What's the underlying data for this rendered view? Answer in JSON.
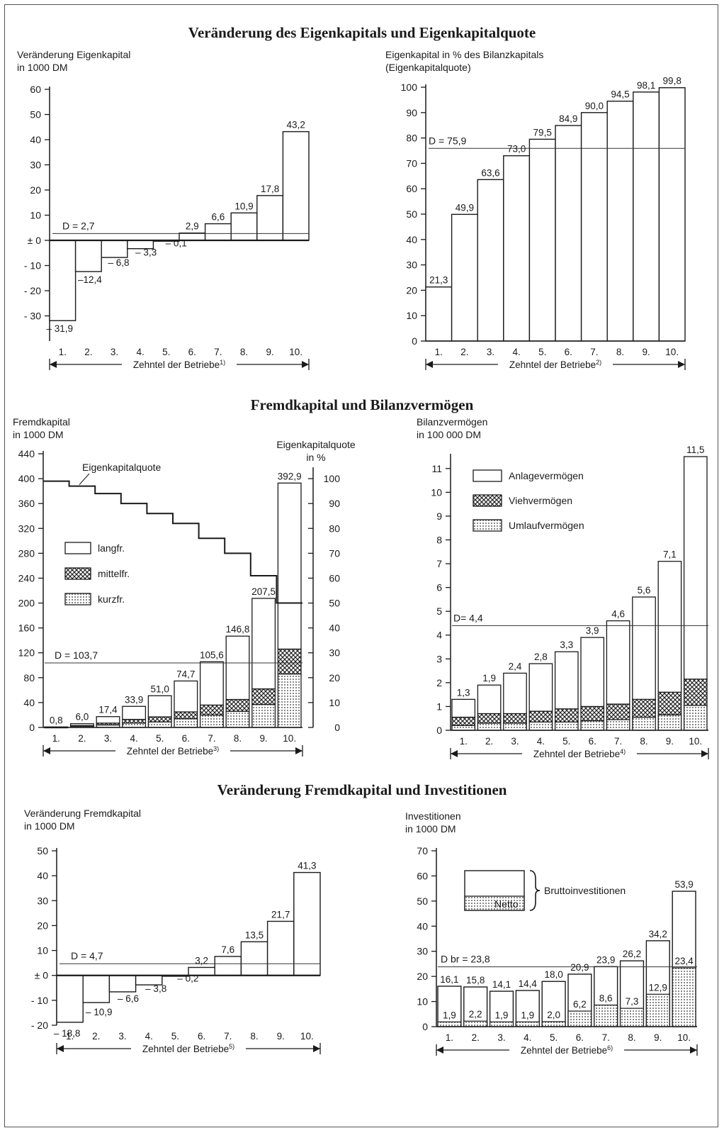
{
  "sections": [
    {
      "title": "Veränderung des Eigenkapitals und Eigenkapitalquote"
    },
    {
      "title": "Fremdkapital und Bilanzvermögen"
    },
    {
      "title": "Veränderung Fremdkapital und Investitionen"
    }
  ],
  "decile_labels": [
    "1.",
    "2.",
    "3.",
    "4.",
    "5.",
    "6.",
    "7.",
    "8.",
    "9.",
    "10."
  ],
  "chart_data": [
    {
      "id": "c1",
      "type": "bar",
      "ylabel_lines": [
        "Veränderung Eigenkapital",
        "in 1000 DM"
      ],
      "xlabel": "Zehntel der Betriebe",
      "footnote": "1)",
      "ylim": [
        -40,
        60
      ],
      "yticks": [
        {
          "v": 60,
          "t": "60"
        },
        {
          "v": 50,
          "t": "50"
        },
        {
          "v": 40,
          "t": "40"
        },
        {
          "v": 30,
          "t": "30"
        },
        {
          "v": 20,
          "t": "20"
        },
        {
          "v": 10,
          "t": "10"
        },
        {
          "v": 0,
          "t": "± 0"
        },
        {
          "v": -10,
          "t": "- 10"
        },
        {
          "v": -20,
          "t": "- 20"
        },
        {
          "v": -30,
          "t": "- 30"
        }
      ],
      "values": [
        -31.9,
        -12.4,
        -6.8,
        -3.3,
        -0.1,
        2.9,
        6.6,
        10.9,
        17.8,
        43.2
      ],
      "value_labels": [
        "– 31,9",
        "–12,4",
        "– 6,8",
        "– 3,3",
        "– 0,1",
        "2,9",
        "6,6",
        "10,9",
        "17,8",
        "43,2"
      ],
      "mean": {
        "value": 2.7,
        "label": "D = 2,7"
      }
    },
    {
      "id": "c2",
      "type": "bar",
      "ylabel_lines": [
        "Eigenkapital in % des Bilanzkapitals",
        "(Eigenkapitalquote)"
      ],
      "xlabel": "Zehntel der Betriebe",
      "footnote": "2)",
      "ylim": [
        0,
        100
      ],
      "yticks": [
        {
          "v": 100,
          "t": "100"
        },
        {
          "v": 90,
          "t": "90"
        },
        {
          "v": 80,
          "t": "80"
        },
        {
          "v": 70,
          "t": "70"
        },
        {
          "v": 60,
          "t": "60"
        },
        {
          "v": 50,
          "t": "50"
        },
        {
          "v": 40,
          "t": "40"
        },
        {
          "v": 30,
          "t": "30"
        },
        {
          "v": 20,
          "t": "20"
        },
        {
          "v": 10,
          "t": "10"
        },
        {
          "v": 0,
          "t": "0"
        }
      ],
      "values": [
        21.3,
        49.9,
        63.6,
        73.0,
        79.5,
        84.9,
        90.0,
        94.5,
        98.1,
        99.8
      ],
      "value_labels": [
        "21,3",
        "49,9",
        "63,6",
        "73,0",
        "79,5",
        "84,9",
        "90,0",
        "94,5",
        "98,1",
        "99,8"
      ],
      "mean": {
        "value": 75.9,
        "label": "D = 75,9"
      }
    },
    {
      "id": "c3",
      "type": "bar",
      "ylabel_lines": [
        "Fremdkapital",
        "in 1000 DM"
      ],
      "right_axis_label_lines": [
        "Eigenkapitalquote",
        "in %"
      ],
      "xlabel": "Zehntel der Betriebe",
      "footnote": "3)",
      "ylim": [
        0,
        440
      ],
      "y2lim": [
        0,
        110
      ],
      "yticks": [
        440,
        400,
        360,
        320,
        280,
        240,
        200,
        160,
        120,
        80,
        40,
        0
      ],
      "y2ticks": [
        100,
        90,
        80,
        70,
        60,
        50,
        40,
        30,
        20,
        10,
        0
      ],
      "totals": [
        0.8,
        6.0,
        17.4,
        33.9,
        51.0,
        74.7,
        105.6,
        146.8,
        207.5,
        392.9
      ],
      "value_labels": [
        "0,8",
        "6,0",
        "17,4",
        "33,9",
        "51,0",
        "74,7",
        "105,6",
        "146,8",
        "207,5",
        "392,9"
      ],
      "series": [
        {
          "name": "kurzfr.",
          "pattern": "dots",
          "values": [
            0.3,
            2,
            4,
            7,
            9,
            14,
            20,
            26,
            37,
            86
          ]
        },
        {
          "name": "mittelfr.",
          "pattern": "cross",
          "values": [
            0.2,
            1,
            3,
            6,
            8,
            11,
            16,
            19,
            25,
            40
          ]
        },
        {
          "name": "langfr.",
          "pattern": "plain",
          "values": [
            0.3,
            3,
            10.4,
            20.9,
            34,
            49.7,
            69.6,
            101.8,
            145.5,
            266.9
          ]
        }
      ],
      "line": {
        "name": "Eigenkapitalquote",
        "values": [
          99,
          97,
          94,
          90,
          86,
          82,
          76,
          70,
          61,
          50
        ]
      },
      "mean": {
        "value": 103.7,
        "label": "D = 103,7"
      }
    },
    {
      "id": "c4",
      "type": "bar",
      "ylabel_lines": [
        "Bilanzvermögen",
        "in 100 000 DM"
      ],
      "xlabel": "Zehntel der Betriebe",
      "footnote": "4)",
      "ylim": [
        0,
        11.5
      ],
      "yticks": [
        11,
        10,
        9,
        8,
        7,
        6,
        5,
        4,
        3,
        2,
        1,
        0
      ],
      "totals": [
        1.3,
        1.9,
        2.4,
        2.8,
        3.3,
        3.9,
        4.6,
        5.6,
        7.1,
        11.5
      ],
      "value_labels": [
        "1,3",
        "1,9",
        "2,4",
        "2,8",
        "3,3",
        "3,9",
        "4,6",
        "5,6",
        "7,1",
        "11,5"
      ],
      "series": [
        {
          "name": "Umlaufvermögen",
          "pattern": "dots",
          "values": [
            0.2,
            0.3,
            0.3,
            0.35,
            0.35,
            0.4,
            0.45,
            0.55,
            0.65,
            1.05
          ]
        },
        {
          "name": "Viehvermögen",
          "pattern": "cross",
          "values": [
            0.35,
            0.4,
            0.4,
            0.45,
            0.55,
            0.6,
            0.65,
            0.75,
            0.95,
            1.1
          ]
        },
        {
          "name": "Anlagevermögen",
          "pattern": "plain",
          "values": [
            0.75,
            1.2,
            1.7,
            2.0,
            2.4,
            2.9,
            3.5,
            4.3,
            5.5,
            9.35
          ]
        }
      ],
      "mean": {
        "value": 4.4,
        "label": "D= 4,4"
      }
    },
    {
      "id": "c5",
      "type": "bar",
      "ylabel_lines": [
        "Veränderung Fremdkapital",
        "in 1000 DM"
      ],
      "xlabel": "Zehntel der Betriebe",
      "footnote": "5)",
      "ylim": [
        -20,
        50
      ],
      "yticks": [
        {
          "v": 50,
          "t": "50"
        },
        {
          "v": 40,
          "t": "40"
        },
        {
          "v": 30,
          "t": "30"
        },
        {
          "v": 20,
          "t": "20"
        },
        {
          "v": 10,
          "t": "10"
        },
        {
          "v": 0,
          "t": "± 0"
        },
        {
          "v": -10,
          "t": "- 10"
        },
        {
          "v": -20,
          "t": "- 20"
        }
      ],
      "values": [
        -18.8,
        -10.9,
        -6.6,
        -3.8,
        -0.2,
        3.2,
        7.6,
        13.5,
        21.7,
        41.3
      ],
      "value_labels": [
        "– 18,8",
        "– 10,9",
        "– 6,6",
        "– 3,8",
        "– 0,2",
        "3,2",
        "7,6",
        "13,5",
        "21,7",
        "41,3"
      ],
      "mean": {
        "value": 4.7,
        "label": "D = 4,7"
      }
    },
    {
      "id": "c6",
      "type": "bar",
      "ylabel_lines": [
        "Investitionen",
        "in 1000 DM"
      ],
      "xlabel": "Zehntel der Betriebe",
      "footnote": "6)",
      "ylim": [
        0,
        70
      ],
      "yticks": [
        70,
        60,
        50,
        40,
        30,
        20,
        10,
        0
      ],
      "series": [
        {
          "name": "Bruttoinvestitionen",
          "values": [
            16.1,
            15.8,
            14.1,
            14.4,
            18.0,
            20.9,
            23.9,
            26.2,
            34.2,
            53.9
          ],
          "labels": [
            "16,1",
            "15,8",
            "14,1",
            "14,4",
            "18,0",
            "20,9",
            "23,9",
            "26,2",
            "34,2",
            "53,9"
          ]
        },
        {
          "name": "Netto",
          "values": [
            1.9,
            2.2,
            1.9,
            1.9,
            2.0,
            6.2,
            8.6,
            7.3,
            12.9,
            23.4
          ],
          "labels": [
            "1,9",
            "2,2",
            "1,9",
            "1,9",
            "2,0",
            "6,2",
            "8,6",
            "7,3",
            "12,9",
            "23,4"
          ]
        }
      ],
      "mean": {
        "value": 23.8,
        "label": "D br = 23,8"
      }
    }
  ]
}
